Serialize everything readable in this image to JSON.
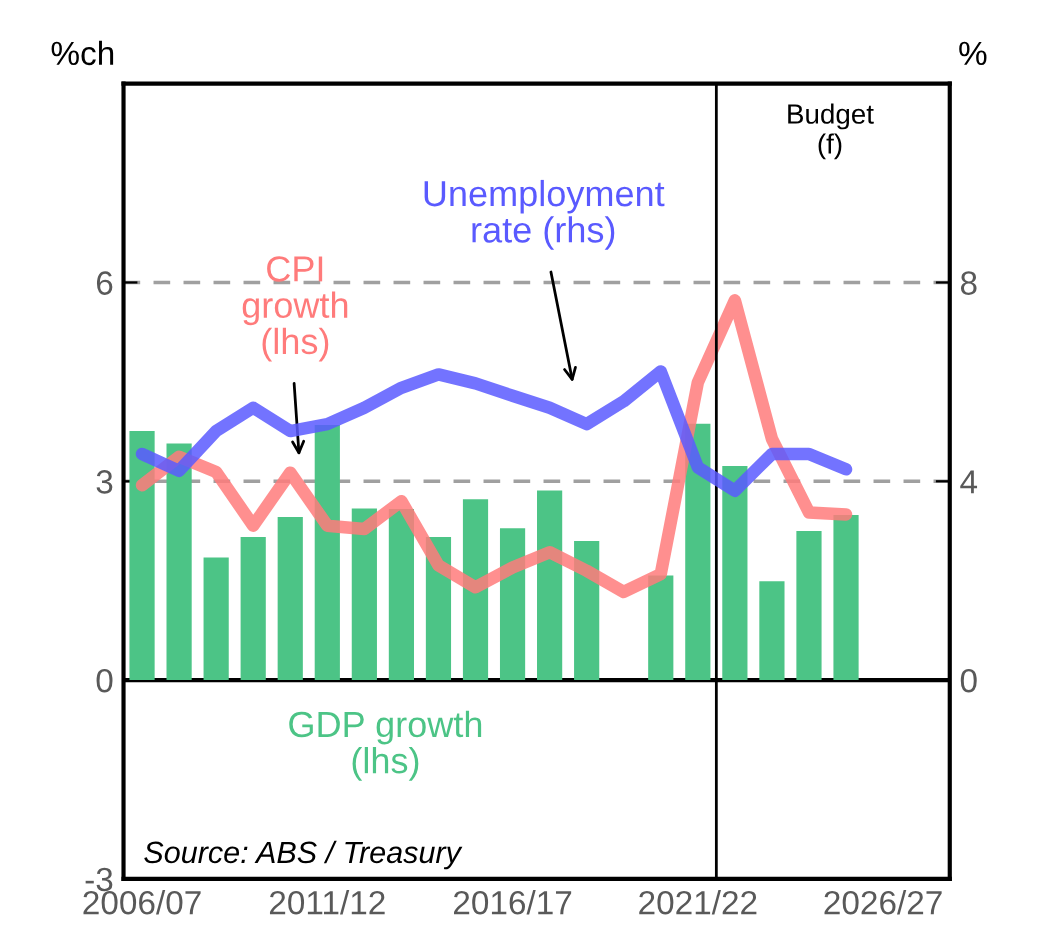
{
  "chart_data": {
    "type": "bar",
    "categories": [
      "2006/07",
      null,
      null,
      null,
      null,
      "2011/12",
      null,
      null,
      null,
      null,
      "2016/17",
      null,
      null,
      null,
      null,
      "2021/22",
      null,
      null,
      null,
      null,
      "2026/27"
    ],
    "series": [
      {
        "name": "GDP growth\n(lhs)",
        "color": "#4cc486",
        "values": [
          3.76,
          3.57,
          1.85,
          2.16,
          2.46,
          3.85,
          2.59,
          2.58,
          2.16,
          2.73,
          2.29,
          2.86,
          2.1,
          null,
          1.58,
          3.87,
          3.23,
          1.49,
          2.25,
          2.49,
          null
        ]
      },
      {
        "name": "CPI\ngrowth\n(lhs)",
        "type": "line",
        "color": "#ff7b7b",
        "values": [
          2.94,
          3.37,
          3.14,
          2.33,
          3.13,
          2.33,
          2.28,
          2.7,
          1.73,
          1.4,
          1.7,
          1.93,
          1.65,
          1.33,
          1.6,
          4.49,
          5.73,
          3.64,
          2.53,
          2.5,
          null
        ]
      },
      {
        "name": "Unemployment\nrate (rhs)",
        "type": "line",
        "axis": "y2",
        "color": "#5a5aff",
        "values": [
          4.55,
          4.21,
          5.01,
          5.48,
          5.01,
          5.15,
          5.48,
          5.88,
          6.15,
          5.97,
          5.72,
          5.48,
          5.15,
          5.61,
          6.21,
          4.28,
          3.81,
          4.55,
          4.55,
          4.24,
          null
        ]
      }
    ],
    "ylabel": "%ch",
    "y2label": "%",
    "ylim": [
      -3,
      9
    ],
    "yticks": [
      -3,
      0,
      3,
      6
    ],
    "y2lim": [
      -4,
      12
    ],
    "y2ticks": [
      0,
      4,
      8
    ],
    "grid": "y",
    "legend": false,
    "ref_lines": [
      {
        "axis": "x",
        "value": "2021/22",
        "label": "Budget\n(f)",
        "color": "#000000"
      }
    ],
    "annotations": [
      "Source: ABS / Treasury"
    ]
  }
}
